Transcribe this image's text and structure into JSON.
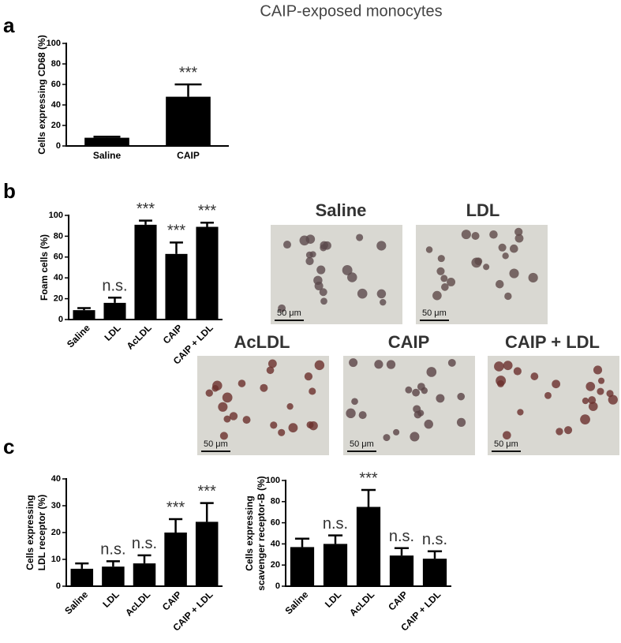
{
  "title": "CAIP-exposed monocytes",
  "panel_labels": [
    "a",
    "b",
    "c"
  ],
  "chart_data": [
    {
      "type": "bar",
      "y_label": [
        "Cells expressing CD68 (%)"
      ],
      "categories": [
        "Saline",
        "CAIP"
      ],
      "values": [
        8,
        48
      ],
      "errors": [
        1,
        12
      ],
      "annotations": [
        null,
        "***"
      ],
      "color": "#000000",
      "ylim": [
        0,
        100
      ],
      "yticks": [
        0,
        20,
        40,
        60,
        80,
        100
      ]
    },
    {
      "type": "bar",
      "y_label": [
        "Foam cells (%)"
      ],
      "categories": [
        "Saline",
        "LDL",
        "AcLDL",
        "CAIP",
        "CAIP + LDL"
      ],
      "values": [
        9,
        16,
        91,
        63,
        89
      ],
      "errors": [
        2,
        5,
        4,
        11,
        4
      ],
      "annotations": [
        null,
        "n.s.",
        "***",
        "***",
        "***"
      ],
      "color": "#000000",
      "ylim": [
        0,
        100
      ],
      "yticks": [
        0,
        20,
        40,
        60,
        80,
        100
      ]
    },
    {
      "type": "bar",
      "y_label": [
        "Cells expressing",
        "LDL receptor (%)"
      ],
      "categories": [
        "Saline",
        "LDL",
        "AcLDL",
        "CAIP",
        "CAIP + LDL"
      ],
      "values": [
        6.5,
        7.3,
        8.5,
        20,
        24
      ],
      "errors": [
        2,
        2,
        3,
        5,
        7
      ],
      "annotations": [
        null,
        "n.s.",
        "n.s.",
        "***",
        "***"
      ],
      "color": "#000000",
      "ylim": [
        0,
        40
      ],
      "yticks": [
        0,
        10,
        20,
        30,
        40
      ]
    },
    {
      "type": "bar",
      "y_label": [
        "Cells expressing",
        "scavenger receptor-B (%)"
      ],
      "categories": [
        "Saline",
        "LDL",
        "AcLDL",
        "CAIP",
        "CAIP + LDL"
      ],
      "values": [
        37,
        40,
        75,
        29,
        26
      ],
      "errors": [
        8,
        8,
        16,
        7,
        7
      ],
      "annotations": [
        null,
        "n.s.",
        "***",
        "n.s.",
        "n.s."
      ],
      "color": "#000000",
      "ylim": [
        0,
        100
      ],
      "yticks": [
        0,
        20,
        40,
        60,
        80,
        100
      ]
    }
  ],
  "micrographs": [
    {
      "label": "Saline",
      "scale_bar": "50 μm"
    },
    {
      "label": "LDL",
      "scale_bar": "50 μm"
    },
    {
      "label": "AcLDL",
      "scale_bar": "50 μm"
    },
    {
      "label": "CAIP",
      "scale_bar": "50 μm"
    },
    {
      "label": "CAIP + LDL",
      "scale_bar": "50 μm"
    }
  ]
}
